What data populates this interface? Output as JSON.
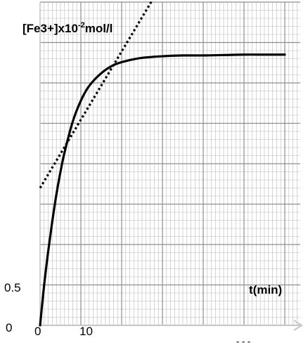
{
  "chart_data": {
    "type": "line",
    "ylabel_main": "[Fe3+]x10",
    "ylabel_exp": "-2",
    "ylabel_unit": "mol/l",
    "xlabel": "t(min)",
    "ytick_labels": [
      "0",
      "0.5"
    ],
    "xtick_labels": [
      "0",
      "10"
    ],
    "footer_text": "- - -",
    "x_grid_step": 10,
    "y_grid_step": 0.5,
    "xlim": [
      0,
      60
    ],
    "ylim": [
      0,
      4
    ],
    "series": [
      {
        "style": "solid",
        "x": [
          0,
          1,
          2,
          3,
          4,
          5,
          6,
          8,
          10,
          12,
          15,
          18,
          21,
          25,
          30,
          35,
          40,
          45,
          50,
          55,
          60
        ],
        "y": [
          0,
          0.5,
          0.92,
          1.29,
          1.62,
          1.9,
          2.14,
          2.52,
          2.78,
          2.96,
          3.12,
          3.22,
          3.27,
          3.31,
          3.33,
          3.34,
          3.34,
          3.345,
          3.35,
          3.35,
          3.35
        ]
      },
      {
        "style": "dotted",
        "x": [
          0,
          29
        ],
        "y": [
          1.7,
          4.15
        ]
      }
    ],
    "colors": {
      "curve": "#000000",
      "grid_minor": "#b9b9b9",
      "grid_major": "#8e8e8e",
      "axis": "#c8c8c8",
      "background": "#ffffff"
    }
  }
}
